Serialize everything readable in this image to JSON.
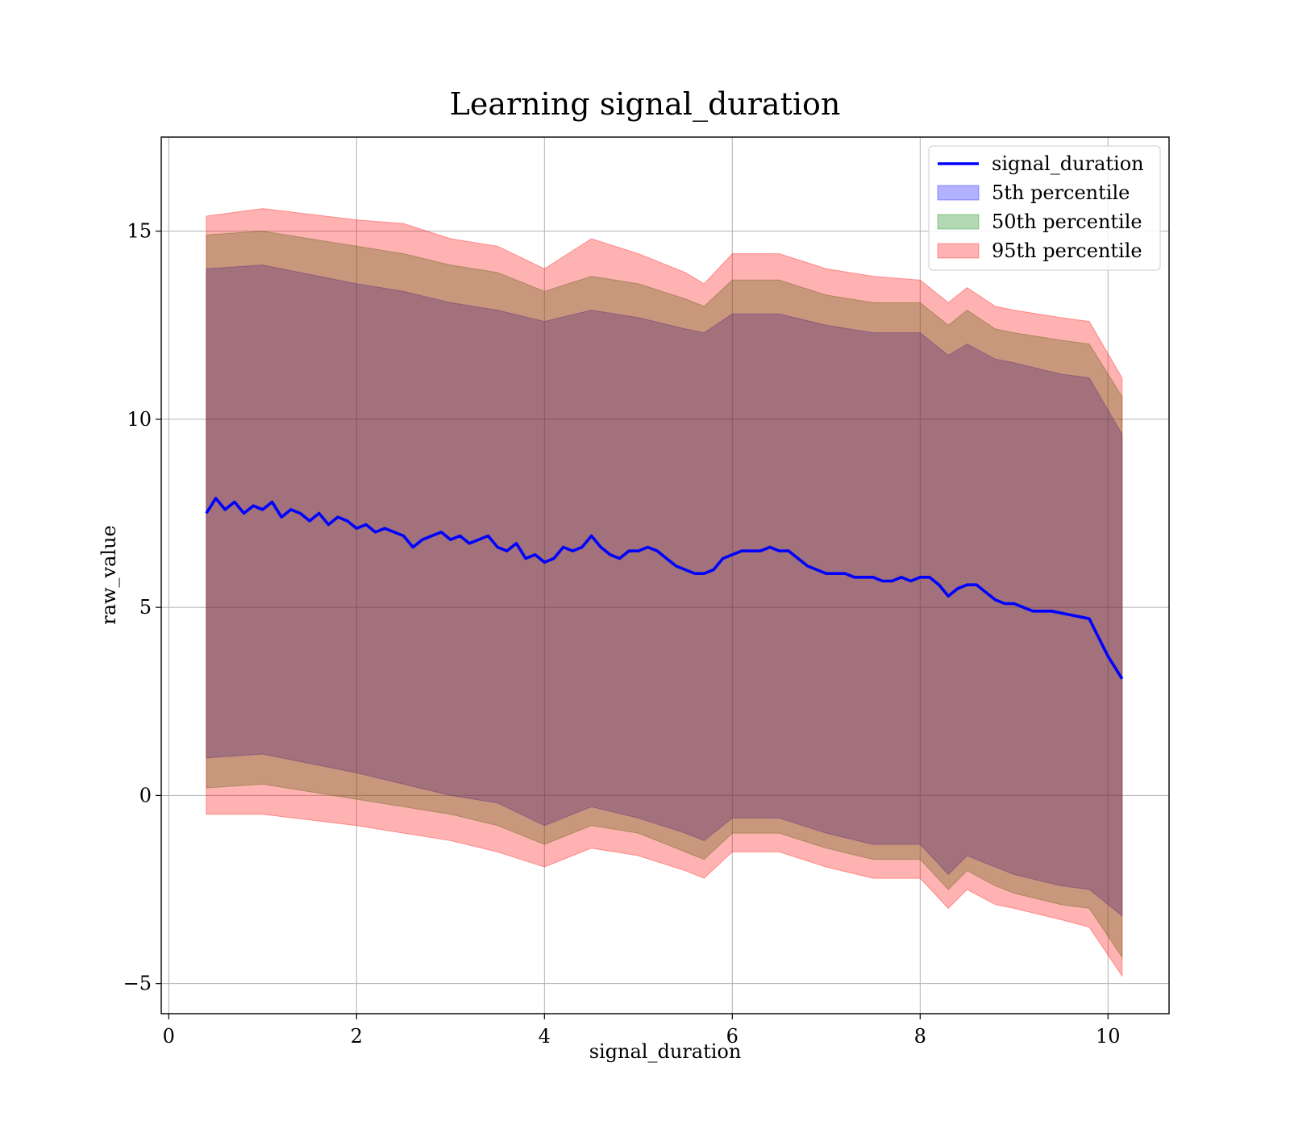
{
  "chart_data": {
    "type": "area",
    "title": "Learning signal_duration",
    "xlabel": "signal_duration",
    "ylabel": "raw_value",
    "xlim": [
      -0.08,
      10.65
    ],
    "ylim": [
      -5.8,
      17.5
    ],
    "xticks": [
      0,
      2,
      4,
      6,
      8,
      10
    ],
    "yticks": [
      -5,
      0,
      5,
      10,
      15
    ],
    "xtick_labels": [
      "0",
      "2",
      "4",
      "6",
      "8",
      "10"
    ],
    "ytick_labels": [
      "−5",
      "0",
      "5",
      "10",
      "15"
    ],
    "grid": true,
    "legend_position": "top-right",
    "legend": [
      {
        "label": "signal_duration",
        "kind": "line",
        "color": "#0000ff"
      },
      {
        "label": "5th percentile",
        "kind": "band",
        "color": "#0000ff"
      },
      {
        "label": "50th percentile",
        "kind": "band",
        "color": "#008000"
      },
      {
        "label": "95th percentile",
        "kind": "band",
        "color": "#ff0000"
      }
    ],
    "series": [
      {
        "name": "signal_duration",
        "color": "#0000ff",
        "x": [
          0.4,
          0.5,
          0.6,
          0.7,
          0.8,
          0.9,
          1.0,
          1.1,
          1.2,
          1.3,
          1.4,
          1.5,
          1.6,
          1.7,
          1.8,
          1.9,
          2.0,
          2.1,
          2.2,
          2.3,
          2.4,
          2.5,
          2.6,
          2.7,
          2.8,
          2.9,
          3.0,
          3.1,
          3.2,
          3.3,
          3.4,
          3.5,
          3.6,
          3.7,
          3.8,
          3.9,
          4.0,
          4.1,
          4.2,
          4.3,
          4.4,
          4.5,
          4.6,
          4.7,
          4.8,
          4.9,
          5.0,
          5.1,
          5.2,
          5.3,
          5.4,
          5.5,
          5.6,
          5.7,
          5.8,
          5.9,
          6.0,
          6.1,
          6.2,
          6.3,
          6.4,
          6.5,
          6.6,
          6.7,
          6.8,
          6.9,
          7.0,
          7.1,
          7.2,
          7.3,
          7.4,
          7.5,
          7.6,
          7.7,
          7.8,
          7.9,
          8.0,
          8.1,
          8.2,
          8.3,
          8.4,
          8.5,
          8.6,
          8.7,
          8.8,
          8.9,
          9.0,
          9.1,
          9.2,
          9.3,
          9.4,
          9.5,
          9.6,
          9.7,
          9.8,
          9.9,
          10.0,
          10.15
        ],
        "y": [
          7.5,
          7.9,
          7.6,
          7.8,
          7.5,
          7.7,
          7.6,
          7.8,
          7.4,
          7.6,
          7.5,
          7.3,
          7.5,
          7.2,
          7.4,
          7.3,
          7.1,
          7.2,
          7.0,
          7.1,
          7.0,
          6.9,
          6.6,
          6.8,
          6.9,
          7.0,
          6.8,
          6.9,
          6.7,
          6.8,
          6.9,
          6.6,
          6.5,
          6.7,
          6.3,
          6.4,
          6.2,
          6.3,
          6.6,
          6.5,
          6.6,
          6.9,
          6.6,
          6.4,
          6.3,
          6.5,
          6.5,
          6.6,
          6.5,
          6.3,
          6.1,
          6.0,
          5.9,
          5.9,
          6.0,
          6.3,
          6.4,
          6.5,
          6.5,
          6.5,
          6.6,
          6.5,
          6.5,
          6.3,
          6.1,
          6.0,
          5.9,
          5.9,
          5.9,
          5.8,
          5.8,
          5.8,
          5.7,
          5.7,
          5.8,
          5.7,
          5.8,
          5.8,
          5.6,
          5.3,
          5.5,
          5.6,
          5.6,
          5.4,
          5.2,
          5.1,
          5.1,
          5.0,
          4.9,
          4.9,
          4.9,
          4.85,
          4.8,
          4.75,
          4.7,
          4.2,
          3.7,
          3.1
        ]
      }
    ],
    "bands": [
      {
        "name": "5th percentile",
        "color": "#0000ff",
        "x": [
          0.4,
          1.0,
          2.0,
          2.5,
          3.0,
          3.5,
          4.0,
          4.5,
          5.0,
          5.5,
          5.7,
          6.0,
          6.5,
          7.0,
          7.5,
          8.0,
          8.3,
          8.5,
          8.8,
          9.0,
          9.5,
          9.8,
          10.15
        ],
        "lower": [
          1.0,
          1.1,
          0.6,
          0.3,
          0.0,
          -0.2,
          -0.8,
          -0.3,
          -0.6,
          -1.0,
          -1.2,
          -0.6,
          -0.6,
          -1.0,
          -1.3,
          -1.3,
          -2.1,
          -1.6,
          -1.9,
          -2.1,
          -2.4,
          -2.5,
          -3.2
        ],
        "upper": [
          14.0,
          14.1,
          13.6,
          13.4,
          13.1,
          12.9,
          12.6,
          12.9,
          12.7,
          12.4,
          12.3,
          12.8,
          12.8,
          12.5,
          12.3,
          12.3,
          11.7,
          12.0,
          11.6,
          11.5,
          11.2,
          11.1,
          9.6
        ]
      },
      {
        "name": "50th percentile",
        "color": "#008000",
        "x": [
          0.4,
          1.0,
          2.0,
          2.5,
          3.0,
          3.5,
          4.0,
          4.5,
          5.0,
          5.5,
          5.7,
          6.0,
          6.5,
          7.0,
          7.5,
          8.0,
          8.3,
          8.5,
          8.8,
          9.0,
          9.5,
          9.8,
          10.15
        ],
        "lower": [
          0.2,
          0.3,
          -0.1,
          -0.3,
          -0.5,
          -0.8,
          -1.3,
          -0.8,
          -1.0,
          -1.5,
          -1.7,
          -1.0,
          -1.0,
          -1.4,
          -1.7,
          -1.7,
          -2.5,
          -2.0,
          -2.4,
          -2.6,
          -2.9,
          -3.0,
          -4.3
        ],
        "upper": [
          14.9,
          15.0,
          14.6,
          14.4,
          14.1,
          13.9,
          13.4,
          13.8,
          13.6,
          13.2,
          13.0,
          13.7,
          13.7,
          13.3,
          13.1,
          13.1,
          12.5,
          12.9,
          12.4,
          12.3,
          12.1,
          12.0,
          10.6
        ]
      },
      {
        "name": "95th percentile",
        "color": "#ff0000",
        "x": [
          0.4,
          1.0,
          2.0,
          2.5,
          3.0,
          3.5,
          4.0,
          4.5,
          5.0,
          5.5,
          5.7,
          6.0,
          6.5,
          7.0,
          7.5,
          8.0,
          8.3,
          8.5,
          8.8,
          9.0,
          9.5,
          9.8,
          10.15
        ],
        "lower": [
          -0.5,
          -0.5,
          -0.8,
          -1.0,
          -1.2,
          -1.5,
          -1.9,
          -1.4,
          -1.6,
          -2.0,
          -2.2,
          -1.5,
          -1.5,
          -1.9,
          -2.2,
          -2.2,
          -3.0,
          -2.5,
          -2.9,
          -3.0,
          -3.3,
          -3.5,
          -4.8
        ],
        "upper": [
          15.4,
          15.6,
          15.3,
          15.2,
          14.8,
          14.6,
          14.0,
          14.8,
          14.4,
          13.9,
          13.6,
          14.4,
          14.4,
          14.0,
          13.8,
          13.7,
          13.1,
          13.5,
          13.0,
          12.9,
          12.7,
          12.6,
          11.1
        ]
      }
    ]
  }
}
